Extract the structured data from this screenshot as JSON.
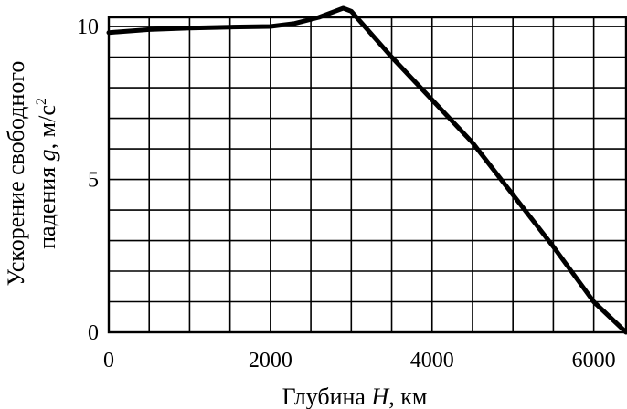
{
  "chart_data": {
    "type": "line",
    "x_ticks": [
      0,
      2000,
      4000,
      6000
    ],
    "y_ticks": [
      0,
      5,
      10
    ],
    "xlim": [
      0,
      6400
    ],
    "ylim": [
      0,
      10.3
    ],
    "x_grid_step": 500,
    "y_grid_step": 1,
    "grid": true,
    "xlabel": {
      "prefix": "Глубина ",
      "var": "H",
      "suffix": ", км"
    },
    "ylabel": {
      "line1": "Ускорение свободного",
      "line2_prefix": "падения ",
      "line2_var": "g",
      "line2_suffix": ", м/с",
      "line2_sup": "2"
    },
    "series": [
      {
        "x": [
          0,
          500,
          1000,
          1500,
          2000,
          2300,
          2600,
          2800,
          2900,
          3000,
          3500,
          4000,
          4500,
          5000,
          5500,
          6000,
          6400
        ],
        "y": [
          9.8,
          9.9,
          9.95,
          9.98,
          10.0,
          10.1,
          10.3,
          10.5,
          10.6,
          10.5,
          9.0,
          7.6,
          6.2,
          4.5,
          2.8,
          1.0,
          0
        ]
      }
    ]
  }
}
